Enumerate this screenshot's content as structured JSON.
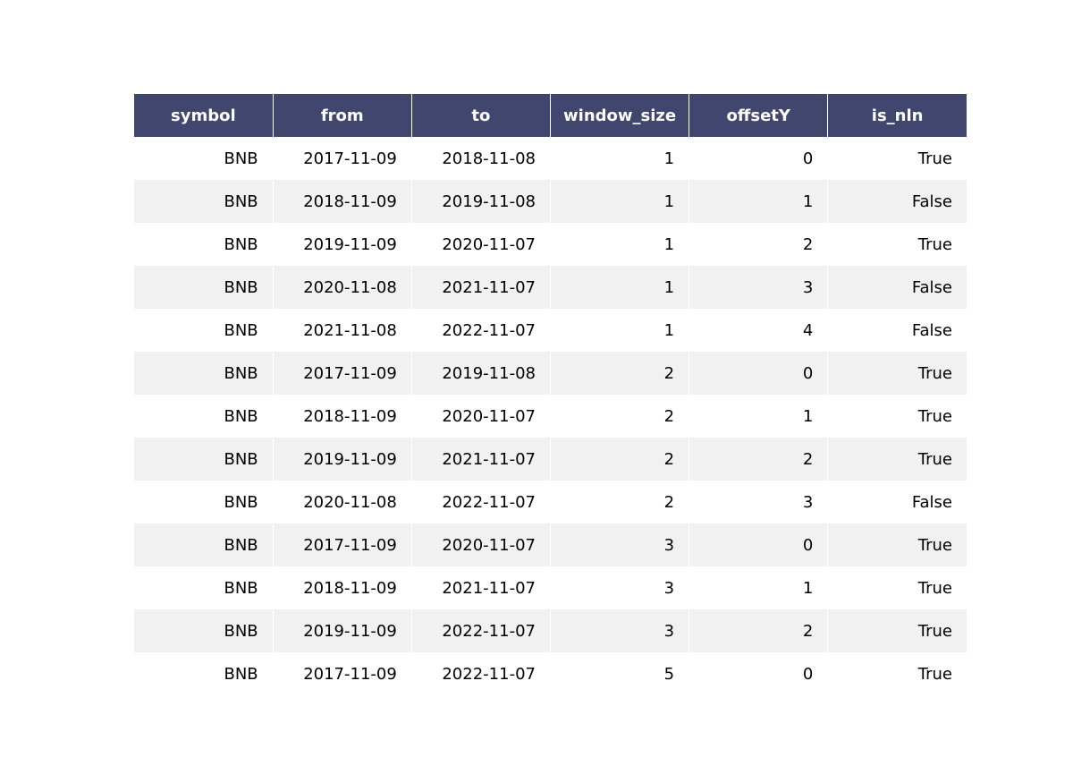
{
  "chart_data": {
    "type": "table",
    "header_color": "#40466e",
    "stripe_color": "#f1f1f2",
    "columns": [
      "symbol",
      "from",
      "to",
      "window_size",
      "offsetY",
      "is_nln"
    ],
    "rows": [
      [
        "BNB",
        "2017-11-09",
        "2018-11-08",
        "1",
        "0",
        "True"
      ],
      [
        "BNB",
        "2018-11-09",
        "2019-11-08",
        "1",
        "1",
        "False"
      ],
      [
        "BNB",
        "2019-11-09",
        "2020-11-07",
        "1",
        "2",
        "True"
      ],
      [
        "BNB",
        "2020-11-08",
        "2021-11-07",
        "1",
        "3",
        "False"
      ],
      [
        "BNB",
        "2021-11-08",
        "2022-11-07",
        "1",
        "4",
        "False"
      ],
      [
        "BNB",
        "2017-11-09",
        "2019-11-08",
        "2",
        "0",
        "True"
      ],
      [
        "BNB",
        "2018-11-09",
        "2020-11-07",
        "2",
        "1",
        "True"
      ],
      [
        "BNB",
        "2019-11-09",
        "2021-11-07",
        "2",
        "2",
        "True"
      ],
      [
        "BNB",
        "2020-11-08",
        "2022-11-07",
        "2",
        "3",
        "False"
      ],
      [
        "BNB",
        "2017-11-09",
        "2020-11-07",
        "3",
        "0",
        "True"
      ],
      [
        "BNB",
        "2018-11-09",
        "2021-11-07",
        "3",
        "1",
        "True"
      ],
      [
        "BNB",
        "2019-11-09",
        "2022-11-07",
        "3",
        "2",
        "True"
      ],
      [
        "BNB",
        "2017-11-09",
        "2022-11-07",
        "5",
        "0",
        "True"
      ]
    ]
  }
}
